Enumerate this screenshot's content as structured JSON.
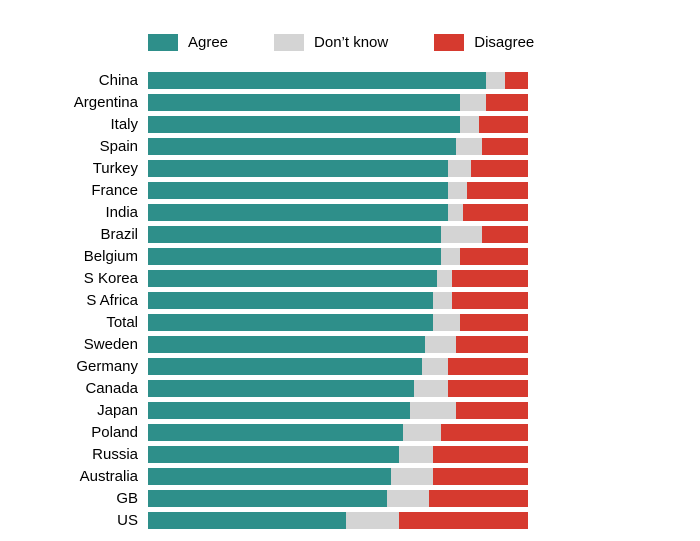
{
  "legend": [
    {
      "label": "Agree",
      "color": "#2e8f8a"
    },
    {
      "label": "Don’t know",
      "color": "#d4d4d4"
    },
    {
      "label": "Disagree",
      "color": "#d63a2f"
    }
  ],
  "colors": {
    "agree": "#2e8f8a",
    "dont_know": "#d4d4d4",
    "disagree": "#d63a2f",
    "background": "#ffffff",
    "text": "#000000"
  },
  "chart_data": {
    "type": "bar",
    "orientation": "horizontal",
    "stacked": true,
    "percent_stacked": true,
    "title": "",
    "xlabel": "",
    "ylabel": "",
    "xlim": [
      0,
      100
    ],
    "grid": false,
    "legend_position": "top",
    "categories": [
      "China",
      "Argentina",
      "Italy",
      "Spain",
      "Turkey",
      "France",
      "India",
      "Brazil",
      "Belgium",
      "S Korea",
      "S Africa",
      "Total",
      "Sweden",
      "Germany",
      "Canada",
      "Japan",
      "Poland",
      "Russia",
      "Australia",
      "GB",
      "US"
    ],
    "series": [
      {
        "name": "Agree",
        "color": "#2e8f8a",
        "values": [
          89,
          82,
          82,
          81,
          79,
          79,
          79,
          77,
          77,
          76,
          75,
          75,
          73,
          72,
          70,
          69,
          67,
          66,
          64,
          63,
          52
        ]
      },
      {
        "name": "Don’t know",
        "color": "#d4d4d4",
        "values": [
          5,
          7,
          5,
          7,
          6,
          5,
          4,
          11,
          5,
          4,
          5,
          7,
          8,
          7,
          9,
          12,
          10,
          9,
          11,
          11,
          14
        ]
      },
      {
        "name": "Disagree",
        "color": "#d63a2f",
        "values": [
          6,
          11,
          13,
          12,
          15,
          16,
          17,
          12,
          18,
          20,
          20,
          18,
          19,
          21,
          21,
          19,
          23,
          25,
          25,
          26,
          34
        ]
      }
    ]
  }
}
